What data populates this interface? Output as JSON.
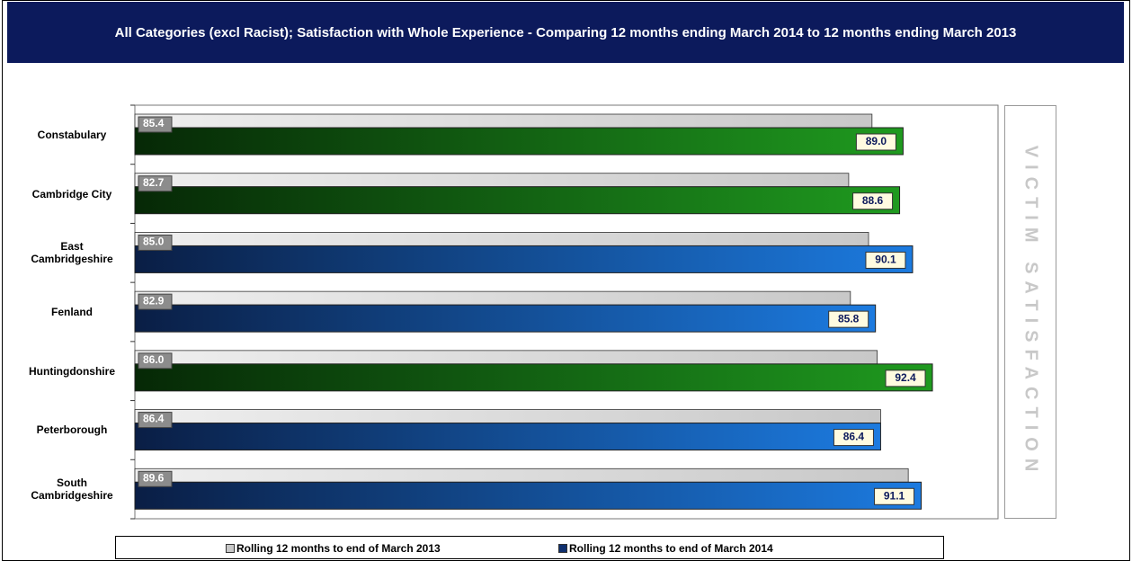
{
  "chart_data": {
    "type": "bar",
    "orientation": "horizontal",
    "title": "All Categories (excl Racist); Satisfaction with Whole Experience - Comparing 12 months ending March 2014 to 12 months ending March 2013",
    "side_text": "VICTIM SATISFACTION",
    "categories": [
      "Constabulary",
      "Cambridge City",
      "East Cambridgeshire",
      "Fenland",
      "Huntingdonshire",
      "Peterborough",
      "South Cambridgeshire"
    ],
    "series": [
      {
        "name": "Rolling 12 months to end of March 2013",
        "color": "#c8c8c8",
        "values": [
          85.4,
          82.7,
          85.0,
          82.9,
          86.0,
          86.4,
          89.6
        ],
        "value_labels": [
          "85.4",
          "82.7",
          "85.0",
          "82.9",
          "86.0",
          "86.4",
          "89.6"
        ]
      },
      {
        "name": "Rolling 12 months to end of March 2014",
        "color": "#0f2f6e",
        "point_colors": [
          "#1f9a1f",
          "#1f9a1f",
          "#1c7be0",
          "#1c7be0",
          "#1f9a1f",
          "#1c7be0",
          "#1c7be0"
        ],
        "values": [
          89.0,
          88.6,
          90.1,
          85.8,
          92.4,
          86.4,
          91.1
        ],
        "value_labels": [
          "89.0",
          "88.6",
          "90.1",
          "85.8",
          "92.4",
          "86.4",
          "91.1"
        ]
      }
    ],
    "xlim": [
      0,
      100
    ],
    "legend": "bottom"
  }
}
